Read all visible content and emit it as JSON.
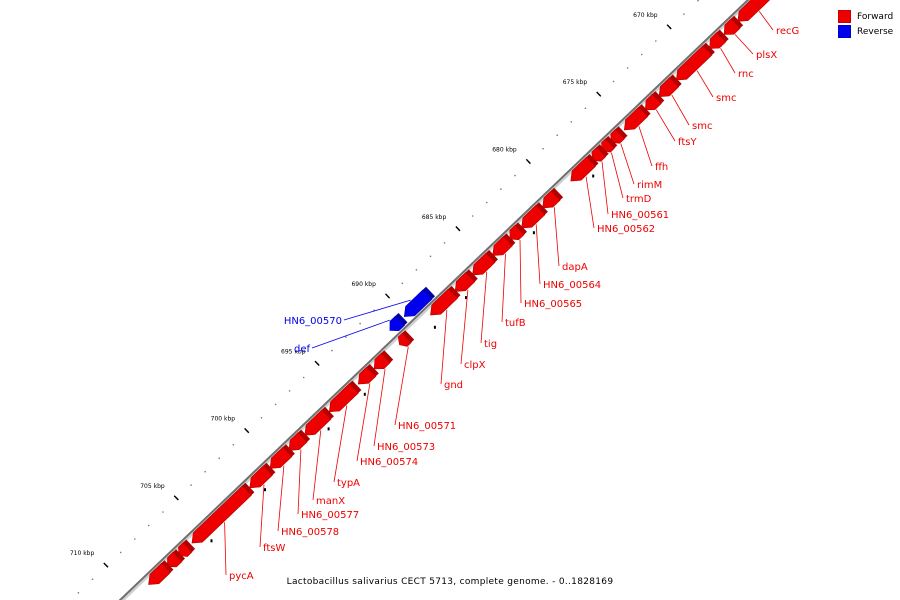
{
  "caption": "Lactobacillus salivarius CECT 5713, complete genome. - 0..1828169",
  "legend": {
    "forward_label": "Forward",
    "reverse_label": "Reverse",
    "forward_color": "#ee0000",
    "reverse_color": "#0000ee"
  },
  "ticks": [
    {
      "label": "670 kbp",
      "kbp": 670
    },
    {
      "label": "675 kbp",
      "kbp": 675
    },
    {
      "label": "680 kbp",
      "kbp": 680
    },
    {
      "label": "685 kbp",
      "kbp": 685
    },
    {
      "label": "690 kbp",
      "kbp": 690
    },
    {
      "label": "695 kbp",
      "kbp": 695
    },
    {
      "label": "700 kbp",
      "kbp": 700
    },
    {
      "label": "705 kbp",
      "kbp": 705
    },
    {
      "label": "710 kbp",
      "kbp": 710
    }
  ],
  "genes": [
    {
      "name": "recG",
      "strand": "forward"
    },
    {
      "name": "plsX",
      "strand": "forward"
    },
    {
      "name": "rnc",
      "strand": "forward"
    },
    {
      "name": "smc",
      "strand": "forward"
    },
    {
      "name": "smc",
      "strand": "forward"
    },
    {
      "name": "ftsY",
      "strand": "forward"
    },
    {
      "name": "ffh",
      "strand": "forward"
    },
    {
      "name": "rimM",
      "strand": "forward"
    },
    {
      "name": "trmD",
      "strand": "forward"
    },
    {
      "name": "HN6_00561",
      "strand": "forward"
    },
    {
      "name": "HN6_00562",
      "strand": "forward"
    },
    {
      "name": "dapA",
      "strand": "forward"
    },
    {
      "name": "HN6_00564",
      "strand": "forward"
    },
    {
      "name": "HN6_00565",
      "strand": "forward"
    },
    {
      "name": "tufB",
      "strand": "forward"
    },
    {
      "name": "tig",
      "strand": "forward"
    },
    {
      "name": "clpX",
      "strand": "forward"
    },
    {
      "name": "gnd",
      "strand": "forward"
    },
    {
      "name": "HN6_00570",
      "strand": "reverse"
    },
    {
      "name": "def",
      "strand": "reverse"
    },
    {
      "name": "HN6_00571",
      "strand": "forward"
    },
    {
      "name": "HN6_00573",
      "strand": "forward"
    },
    {
      "name": "HN6_00574",
      "strand": "forward"
    },
    {
      "name": "typA",
      "strand": "forward"
    },
    {
      "name": "manX",
      "strand": "forward"
    },
    {
      "name": "HN6_00577",
      "strand": "forward"
    },
    {
      "name": "HN6_00578",
      "strand": "forward"
    },
    {
      "name": "ftsW",
      "strand": "forward"
    },
    {
      "name": "pycA",
      "strand": "forward"
    }
  ]
}
